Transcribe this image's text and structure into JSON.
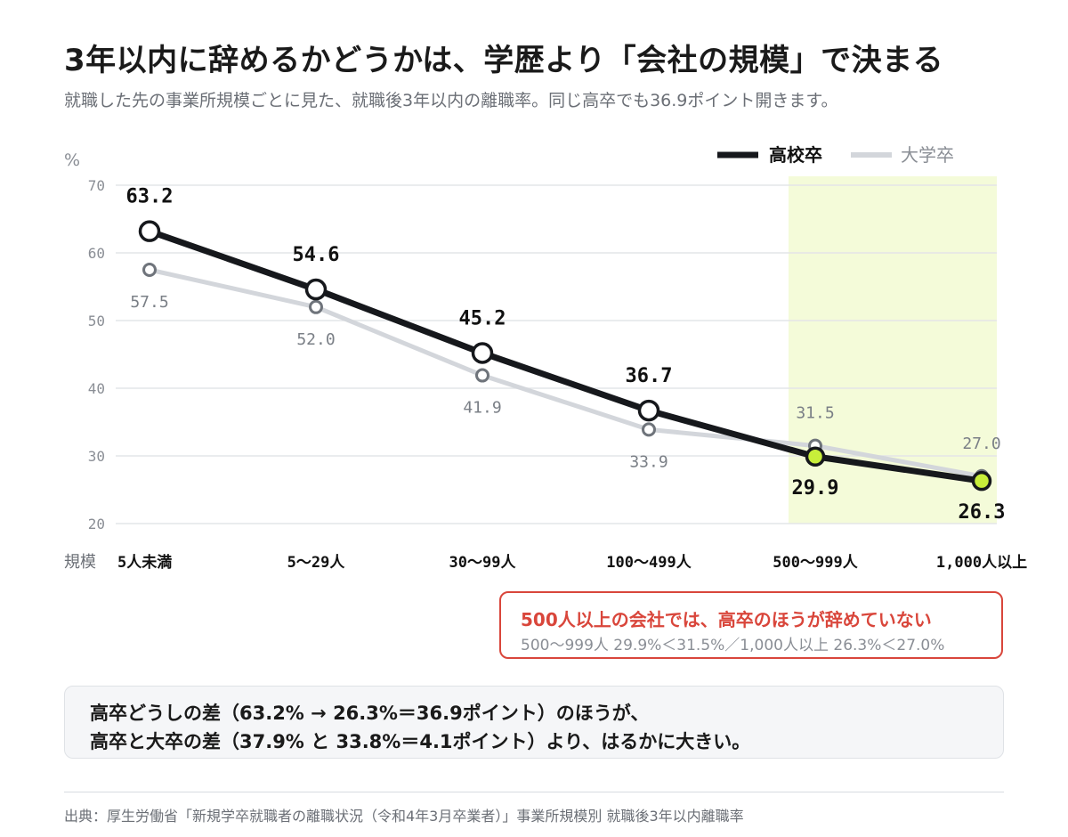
{
  "header": {
    "title": "3年以内に辞めるかどうかは、学歴より「会社の規模」で決まる",
    "subtitle": "就職した先の事業所規模ごとに見た、就職後3年以内の離職率。同じ高卒でも36.9ポイント開きます。"
  },
  "chart_data": {
    "type": "line",
    "ylabel": "%",
    "xlabel": "規模",
    "ylim": [
      20,
      70
    ],
    "yticks": [
      20,
      30,
      40,
      50,
      60,
      70
    ],
    "grid": true,
    "legend_position": "top-right",
    "categories": [
      "5人未満",
      "5～29人",
      "30～99人",
      "100～499人",
      "500～999人",
      "1,000人以上"
    ],
    "series": [
      {
        "name": "高校卒",
        "values": [
          63.2,
          54.6,
          45.2,
          36.7,
          29.9,
          26.3
        ],
        "labels": [
          "63.2",
          "54.6",
          "45.2",
          "36.7",
          "29.9",
          "26.3"
        ]
      },
      {
        "name": "大学卒",
        "values": [
          57.5,
          52.0,
          41.9,
          33.9,
          31.5,
          27.0
        ],
        "labels": [
          "57.5",
          "52.0",
          "41.9",
          "33.9",
          "31.5",
          "27.0"
        ]
      }
    ],
    "highlight_categories": [
      "500～999人",
      "1,000人以上"
    ]
  },
  "colors": {
    "high_school": "#16181c",
    "university": "#d3d6db",
    "highlight_band": "#f4fbd9",
    "highlight_point": "#c8ee3a",
    "callout_red": "#d9463b",
    "grid": "#e3e5e8",
    "muted_text": "#8a8e95"
  },
  "callout": {
    "title": "500人以上の会社では、高卒のほうが辞めていない",
    "detail": "500～999人 29.9%＜31.5%／1,000人以上 26.3%＜27.0%"
  },
  "summary": {
    "line1": "高卒どうしの差（63.2% → 26.3%＝36.9ポイント）のほうが、",
    "line2": "高卒と大卒の差（37.9% と 33.8%＝4.1ポイント）より、はるかに大きい。"
  },
  "source": "出典：厚生労働省「新規学卒就職者の離職状況（令和4年3月卒業者）」事業所規模別 就職後3年以内離職率"
}
